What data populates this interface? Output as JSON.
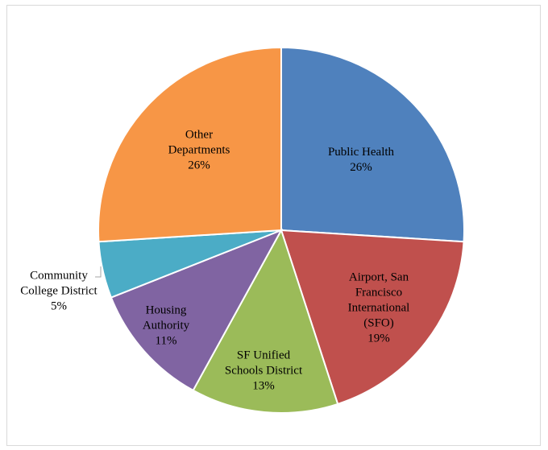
{
  "chart_data": {
    "type": "pie",
    "slices": [
      {
        "key": "public_health",
        "label_lines": [
          "Public Health"
        ],
        "pct_text": "26%",
        "value": 26,
        "color": "#4f81bd"
      },
      {
        "key": "airport",
        "label_lines": [
          "Airport, San",
          "Francisco",
          "International",
          "(SFO)"
        ],
        "pct_text": "19%",
        "value": 19,
        "color": "#c0504d"
      },
      {
        "key": "sf_unified",
        "label_lines": [
          "SF Unified",
          "Schools District"
        ],
        "pct_text": "13%",
        "value": 13,
        "color": "#9bbb59"
      },
      {
        "key": "housing",
        "label_lines": [
          "Housing",
          "Authority"
        ],
        "pct_text": "11%",
        "value": 11,
        "color": "#8064a2"
      },
      {
        "key": "community_college",
        "label_lines": [
          "Community",
          "College District"
        ],
        "pct_text": "5%",
        "value": 5,
        "color": "#4bacc6"
      },
      {
        "key": "other",
        "label_lines": [
          "Other",
          "Departments"
        ],
        "pct_text": "26%",
        "value": 26,
        "color": "#f79646"
      }
    ]
  }
}
